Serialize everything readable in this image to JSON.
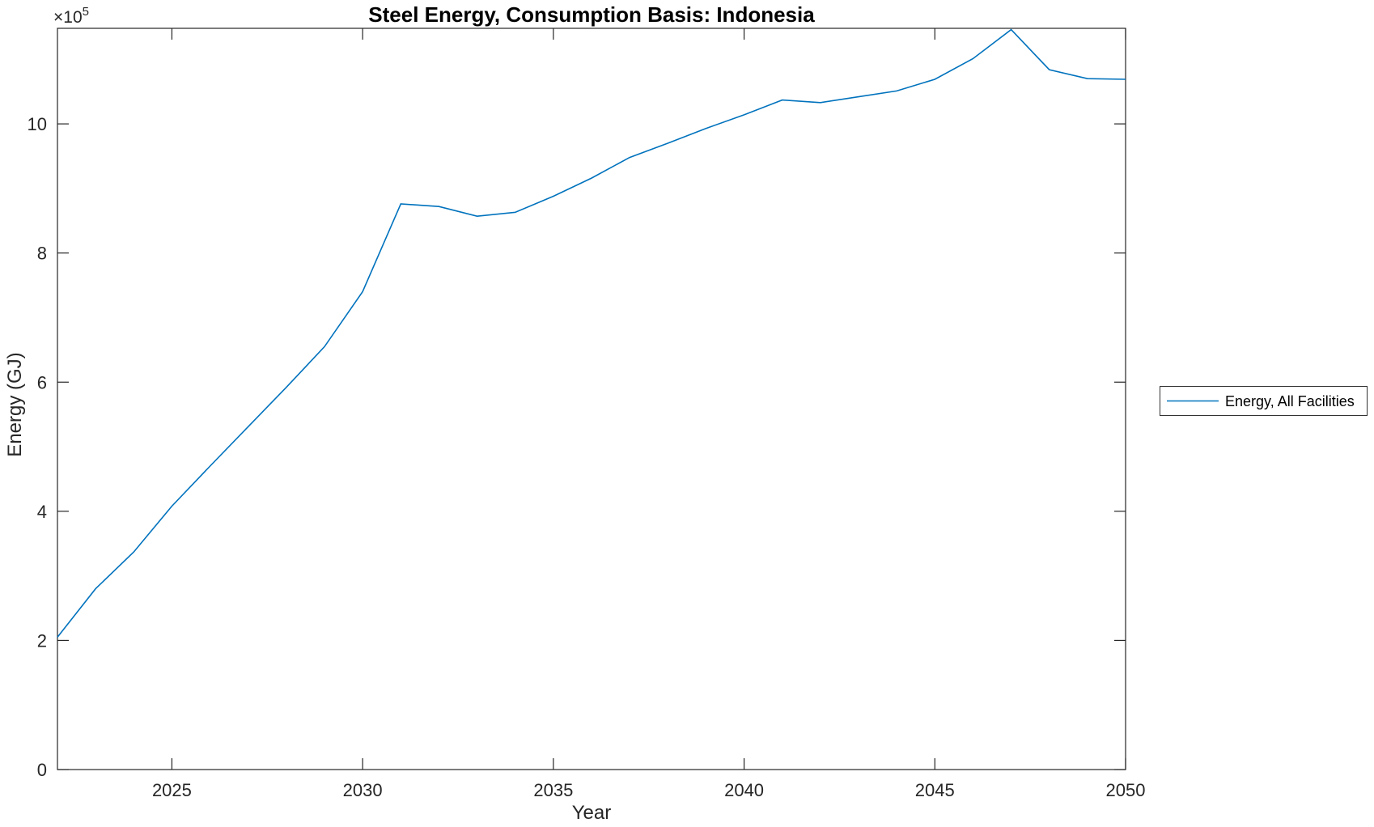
{
  "figure": {
    "background": "#ffffff"
  },
  "chart_data": {
    "type": "line",
    "title": "Steel Energy, Consumption Basis: Indonesia",
    "xlabel": "Year",
    "ylabel": "Energy (GJ)",
    "y_exponent": {
      "mantissa": "×10",
      "exponent": "5"
    },
    "y_scale_factor": 100000,
    "x": [
      2022,
      2023,
      2024,
      2025,
      2026,
      2027,
      2028,
      2029,
      2030,
      2031,
      2032,
      2033,
      2034,
      2035,
      2036,
      2037,
      2038,
      2039,
      2040,
      2041,
      2042,
      2043,
      2044,
      2045,
      2046,
      2047,
      2048,
      2049,
      2050
    ],
    "series": [
      {
        "name": "Energy, All Facilities",
        "color": "#0072BD",
        "values": [
          2.05,
          2.8,
          3.37,
          4.08,
          4.7,
          5.31,
          5.92,
          6.55,
          7.4,
          8.76,
          8.72,
          8.57,
          8.63,
          8.88,
          9.16,
          9.48,
          9.7,
          9.93,
          10.14,
          10.37,
          10.33,
          10.42,
          10.51,
          10.69,
          11.01,
          11.46,
          10.84,
          10.7,
          10.69
        ]
      }
    ],
    "xlim": [
      2022,
      2050
    ],
    "ylim": [
      0,
      11.48
    ],
    "xticks": [
      2025,
      2030,
      2035,
      2040,
      2045,
      2050
    ],
    "yticks": [
      0,
      2,
      4,
      6,
      8,
      10
    ],
    "grid": false,
    "box": true,
    "tick_direction": "in",
    "legend_position": "right-outside"
  },
  "legend": {
    "entries": [
      {
        "label": "Energy, All Facilities",
        "color": "#0072BD"
      }
    ]
  },
  "colors": {
    "axis": "#262626",
    "tick_label": "#262626",
    "title": "#000000",
    "line": "#0072BD",
    "legend_border": "#333333",
    "background": "#ffffff"
  }
}
